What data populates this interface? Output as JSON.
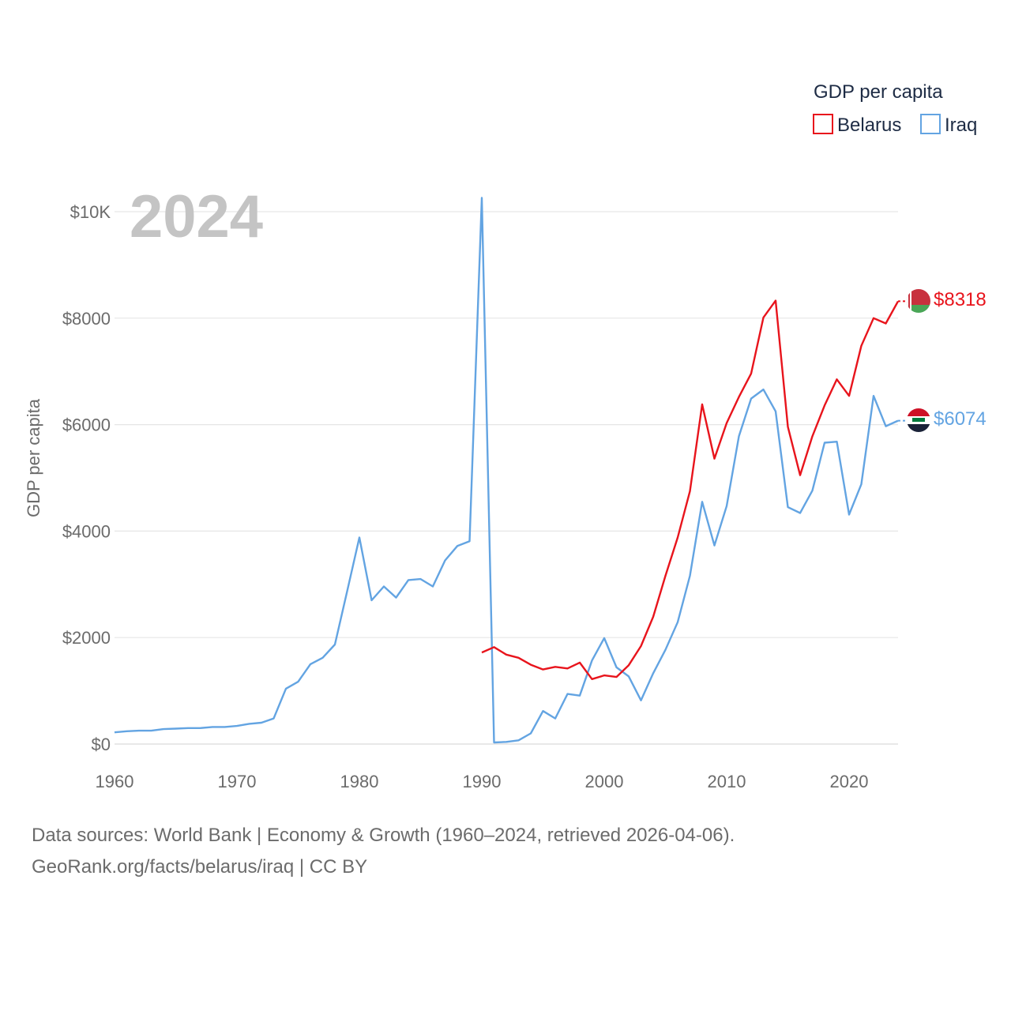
{
  "chart_data": {
    "type": "line",
    "year_label": "2024",
    "ylabel": "GDP per capita",
    "legend_title": "GDP per capita",
    "legend_position": "top-right",
    "xlim": [
      1960,
      2024
    ],
    "ylim": [
      0,
      10000
    ],
    "x_ticks": [
      {
        "value": 1960,
        "label": "1960"
      },
      {
        "value": 1970,
        "label": "1970"
      },
      {
        "value": 1980,
        "label": "1980"
      },
      {
        "value": 1990,
        "label": "1990"
      },
      {
        "value": 2000,
        "label": "2000"
      },
      {
        "value": 2010,
        "label": "2010"
      },
      {
        "value": 2020,
        "label": "2020"
      }
    ],
    "y_ticks": [
      {
        "value": 0,
        "label": "$0"
      },
      {
        "value": 2000,
        "label": "$2000"
      },
      {
        "value": 4000,
        "label": "$4000"
      },
      {
        "value": 6000,
        "label": "$6000"
      },
      {
        "value": 8000,
        "label": "$8000"
      },
      {
        "value": 10000,
        "label": "$10K"
      }
    ],
    "series": [
      {
        "name": "Belarus",
        "color": "#e8141c",
        "end_label": "$8318",
        "x": [
          1990,
          1991,
          1992,
          1993,
          1994,
          1995,
          1996,
          1997,
          1998,
          1999,
          2000,
          2001,
          2002,
          2003,
          2004,
          2005,
          2006,
          2007,
          2008,
          2009,
          2010,
          2011,
          2012,
          2013,
          2014,
          2015,
          2016,
          2017,
          2018,
          2019,
          2020,
          2021,
          2022,
          2023,
          2024
        ],
        "values": [
          1720,
          1820,
          1680,
          1620,
          1490,
          1400,
          1450,
          1420,
          1530,
          1220,
          1290,
          1260,
          1480,
          1840,
          2390,
          3160,
          3880,
          4750,
          6380,
          5360,
          6030,
          6520,
          6960,
          8010,
          8330,
          5960,
          5050,
          5780,
          6360,
          6850,
          6540,
          7480,
          8000,
          7900,
          8318
        ]
      },
      {
        "name": "Iraq",
        "color": "#63a4e2",
        "end_label": "$6074",
        "x": [
          1960,
          1961,
          1962,
          1963,
          1964,
          1965,
          1966,
          1967,
          1968,
          1969,
          1970,
          1971,
          1972,
          1973,
          1974,
          1975,
          1976,
          1977,
          1978,
          1979,
          1980,
          1981,
          1982,
          1983,
          1984,
          1985,
          1986,
          1987,
          1988,
          1989,
          1990,
          1991,
          1992,
          1993,
          1994,
          1995,
          1996,
          1997,
          1998,
          1999,
          2000,
          2001,
          2002,
          2003,
          2004,
          2005,
          2006,
          2007,
          2008,
          2009,
          2010,
          2011,
          2012,
          2013,
          2014,
          2015,
          2016,
          2017,
          2018,
          2019,
          2020,
          2021,
          2022,
          2023,
          2024
        ],
        "values": [
          220,
          240,
          250,
          250,
          280,
          290,
          300,
          300,
          320,
          320,
          340,
          380,
          400,
          480,
          1040,
          1170,
          1500,
          1620,
          1870,
          2870,
          3880,
          2700,
          2960,
          2750,
          3080,
          3100,
          2960,
          3450,
          3720,
          3810,
          10260,
          30,
          40,
          70,
          200,
          620,
          480,
          940,
          910,
          1570,
          1990,
          1440,
          1270,
          820,
          1330,
          1770,
          2290,
          3160,
          4550,
          3730,
          4470,
          5780,
          6490,
          6660,
          6250,
          4450,
          4340,
          4760,
          5660,
          5680,
          4310,
          4880,
          6540,
          5970,
          6074
        ]
      }
    ]
  },
  "footer": {
    "line1": "Data sources: World Bank | Economy & Growth (1960–2024, retrieved 2026-04-06).",
    "line2": "GeoRank.org/facts/belarus/iraq | CC BY"
  }
}
